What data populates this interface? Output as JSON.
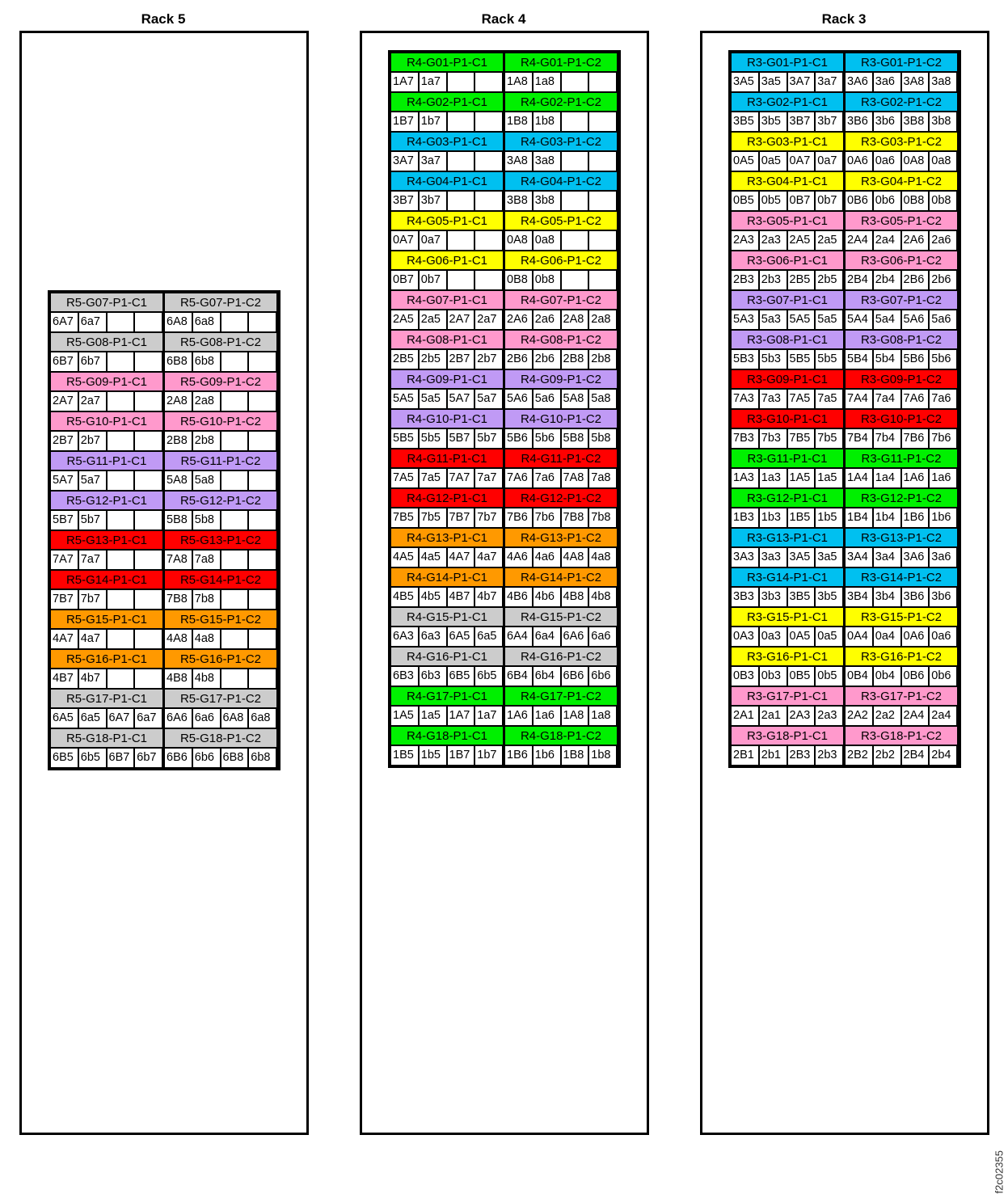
{
  "colors": {
    "gray": "#cccccc",
    "pink": "#ff99cc",
    "purple": "#c09af5",
    "red": "#ff0000",
    "orange": "#ff9900",
    "green": "#00f000",
    "cyan": "#00c0f0",
    "yellow": "#ffff00"
  },
  "figure_id": "f2c02355",
  "racks": [
    {
      "title": "Rack 5",
      "groups": [
        {
          "c1": "R5-G07-P1-C1",
          "c2": "R5-G07-P1-C2",
          "color": "gray",
          "cells": [
            "6A7",
            "6a7",
            "",
            "",
            "6A8",
            "6a8",
            "",
            ""
          ]
        },
        {
          "c1": "R5-G08-P1-C1",
          "c2": "R5-G08-P1-C2",
          "color": "gray",
          "cells": [
            "6B7",
            "6b7",
            "",
            "",
            "6B8",
            "6b8",
            "",
            ""
          ]
        },
        {
          "c1": "R5-G09-P1-C1",
          "c2": "R5-G09-P1-C2",
          "color": "pink",
          "cells": [
            "2A7",
            "2a7",
            "",
            "",
            "2A8",
            "2a8",
            "",
            ""
          ]
        },
        {
          "c1": "R5-G10-P1-C1",
          "c2": "R5-G10-P1-C2",
          "color": "pink",
          "cells": [
            "2B7",
            "2b7",
            "",
            "",
            "2B8",
            "2b8",
            "",
            ""
          ]
        },
        {
          "c1": "R5-G11-P1-C1",
          "c2": "R5-G11-P1-C2",
          "color": "purple",
          "cells": [
            "5A7",
            "5a7",
            "",
            "",
            "5A8",
            "5a8",
            "",
            ""
          ]
        },
        {
          "c1": "R5-G12-P1-C1",
          "c2": "R5-G12-P1-C2",
          "color": "purple",
          "cells": [
            "5B7",
            "5b7",
            "",
            "",
            "5B8",
            "5b8",
            "",
            ""
          ]
        },
        {
          "c1": "R5-G13-P1-C1",
          "c2": "R5-G13-P1-C2",
          "color": "red",
          "cells": [
            "7A7",
            "7a7",
            "",
            "",
            "7A8",
            "7a8",
            "",
            ""
          ]
        },
        {
          "c1": "R5-G14-P1-C1",
          "c2": "R5-G14-P1-C2",
          "color": "red",
          "cells": [
            "7B7",
            "7b7",
            "",
            "",
            "7B8",
            "7b8",
            "",
            ""
          ]
        },
        {
          "c1": "R5-G15-P1-C1",
          "c2": "R5-G15-P1-C2",
          "color": "orange",
          "cells": [
            "4A7",
            "4a7",
            "",
            "",
            "4A8",
            "4a8",
            "",
            ""
          ]
        },
        {
          "c1": "R5-G16-P1-C1",
          "c2": "R5-G16-P1-C2",
          "color": "orange",
          "cells": [
            "4B7",
            "4b7",
            "",
            "",
            "4B8",
            "4b8",
            "",
            ""
          ]
        },
        {
          "c1": "R5-G17-P1-C1",
          "c2": "R5-G17-P1-C2",
          "color": "gray",
          "cells": [
            "6A5",
            "6a5",
            "6A7",
            "6a7",
            "6A6",
            "6a6",
            "6A8",
            "6a8"
          ]
        },
        {
          "c1": "R5-G18-P1-C1",
          "c2": "R5-G18-P1-C2",
          "color": "gray",
          "cells": [
            "6B5",
            "6b5",
            "6B7",
            "6b7",
            "6B6",
            "6b6",
            "6B8",
            "6b8"
          ]
        }
      ]
    },
    {
      "title": "Rack 4",
      "groups": [
        {
          "c1": "R4-G01-P1-C1",
          "c2": "R4-G01-P1-C2",
          "color": "green",
          "cells": [
            "1A7",
            "1a7",
            "",
            "",
            "1A8",
            "1a8",
            "",
            ""
          ]
        },
        {
          "c1": "R4-G02-P1-C1",
          "c2": "R4-G02-P1-C2",
          "color": "green",
          "cells": [
            "1B7",
            "1b7",
            "",
            "",
            "1B8",
            "1b8",
            "",
            ""
          ]
        },
        {
          "c1": "R4-G03-P1-C1",
          "c2": "R4-G03-P1-C2",
          "color": "cyan",
          "cells": [
            "3A7",
            "3a7",
            "",
            "",
            "3A8",
            "3a8",
            "",
            ""
          ]
        },
        {
          "c1": "R4-G04-P1-C1",
          "c2": "R4-G04-P1-C2",
          "color": "cyan",
          "cells": [
            "3B7",
            "3b7",
            "",
            "",
            "3B8",
            "3b8",
            "",
            ""
          ]
        },
        {
          "c1": "R4-G05-P1-C1",
          "c2": "R4-G05-P1-C2",
          "color": "yellow",
          "cells": [
            "0A7",
            "0a7",
            "",
            "",
            "0A8",
            "0a8",
            "",
            ""
          ]
        },
        {
          "c1": "R4-G06-P1-C1",
          "c2": "R4-G06-P1-C2",
          "color": "yellow",
          "cells": [
            "0B7",
            "0b7",
            "",
            "",
            "0B8",
            "0b8",
            "",
            ""
          ]
        },
        {
          "c1": "R4-G07-P1-C1",
          "c2": "R4-G07-P1-C2",
          "color": "pink",
          "cells": [
            "2A5",
            "2a5",
            "2A7",
            "2a7",
            "2A6",
            "2a6",
            "2A8",
            "2a8"
          ]
        },
        {
          "c1": "R4-G08-P1-C1",
          "c2": "R4-G08-P1-C2",
          "color": "pink",
          "cells": [
            "2B5",
            "2b5",
            "2B7",
            "2b7",
            "2B6",
            "2b6",
            "2B8",
            "2b8"
          ]
        },
        {
          "c1": "R4-G09-P1-C1",
          "c2": "R4-G09-P1-C2",
          "color": "purple",
          "cells": [
            "5A5",
            "5a5",
            "5A7",
            "5a7",
            "5A6",
            "5a6",
            "5A8",
            "5a8"
          ]
        },
        {
          "c1": "R4-G10-P1-C1",
          "c2": "R4-G10-P1-C2",
          "color": "purple",
          "cells": [
            "5B5",
            "5b5",
            "5B7",
            "5b7",
            "5B6",
            "5b6",
            "5B8",
            "5b8"
          ]
        },
        {
          "c1": "R4-G11-P1-C1",
          "c2": "R4-G11-P1-C2",
          "color": "red",
          "cells": [
            "7A5",
            "7a5",
            "7A7",
            "7a7",
            "7A6",
            "7a6",
            "7A8",
            "7a8"
          ]
        },
        {
          "c1": "R4-G12-P1-C1",
          "c2": "R4-G12-P1-C2",
          "color": "red",
          "cells": [
            "7B5",
            "7b5",
            "7B7",
            "7b7",
            "7B6",
            "7b6",
            "7B8",
            "7b8"
          ]
        },
        {
          "c1": "R4-G13-P1-C1",
          "c2": "R4-G13-P1-C2",
          "color": "orange",
          "cells": [
            "4A5",
            "4a5",
            "4A7",
            "4a7",
            "4A6",
            "4a6",
            "4A8",
            "4a8"
          ]
        },
        {
          "c1": "R4-G14-P1-C1",
          "c2": "R4-G14-P1-C2",
          "color": "orange",
          "cells": [
            "4B5",
            "4b5",
            "4B7",
            "4b7",
            "4B6",
            "4b6",
            "4B8",
            "4b8"
          ]
        },
        {
          "c1": "R4-G15-P1-C1",
          "c2": "R4-G15-P1-C2",
          "color": "gray",
          "cells": [
            "6A3",
            "6a3",
            "6A5",
            "6a5",
            "6A4",
            "6a4",
            "6A6",
            "6a6"
          ]
        },
        {
          "c1": "R4-G16-P1-C1",
          "c2": "R4-G16-P1-C2",
          "color": "gray",
          "cells": [
            "6B3",
            "6b3",
            "6B5",
            "6b5",
            "6B4",
            "6b4",
            "6B6",
            "6b6"
          ]
        },
        {
          "c1": "R4-G17-P1-C1",
          "c2": "R4-G17-P1-C2",
          "color": "green",
          "cells": [
            "1A5",
            "1a5",
            "1A7",
            "1a7",
            "1A6",
            "1a6",
            "1A8",
            "1a8"
          ]
        },
        {
          "c1": "R4-G18-P1-C1",
          "c2": "R4-G18-P1-C2",
          "color": "green",
          "cells": [
            "1B5",
            "1b5",
            "1B7",
            "1b7",
            "1B6",
            "1b6",
            "1B8",
            "1b8"
          ]
        }
      ]
    },
    {
      "title": "Rack 3",
      "groups": [
        {
          "c1": "R3-G01-P1-C1",
          "c2": "R3-G01-P1-C2",
          "color": "cyan",
          "cells": [
            "3A5",
            "3a5",
            "3A7",
            "3a7",
            "3A6",
            "3a6",
            "3A8",
            "3a8"
          ]
        },
        {
          "c1": "R3-G02-P1-C1",
          "c2": "R3-G02-P1-C2",
          "color": "cyan",
          "cells": [
            "3B5",
            "3b5",
            "3B7",
            "3b7",
            "3B6",
            "3b6",
            "3B8",
            "3b8"
          ]
        },
        {
          "c1": "R3-G03-P1-C1",
          "c2": "R3-G03-P1-C2",
          "color": "yellow",
          "cells": [
            "0A5",
            "0a5",
            "0A7",
            "0a7",
            "0A6",
            "0a6",
            "0A8",
            "0a8"
          ]
        },
        {
          "c1": "R3-G04-P1-C1",
          "c2": "R3-G04-P1-C2",
          "color": "yellow",
          "cells": [
            "0B5",
            "0b5",
            "0B7",
            "0b7",
            "0B6",
            "0b6",
            "0B8",
            "0b8"
          ]
        },
        {
          "c1": "R3-G05-P1-C1",
          "c2": "R3-G05-P1-C2",
          "color": "pink",
          "cells": [
            "2A3",
            "2a3",
            "2A5",
            "2a5",
            "2A4",
            "2a4",
            "2A6",
            "2a6"
          ]
        },
        {
          "c1": "R3-G06-P1-C1",
          "c2": "R3-G06-P1-C2",
          "color": "pink",
          "cells": [
            "2B3",
            "2b3",
            "2B5",
            "2b5",
            "2B4",
            "2b4",
            "2B6",
            "2b6"
          ]
        },
        {
          "c1": "R3-G07-P1-C1",
          "c2": "R3-G07-P1-C2",
          "color": "purple",
          "cells": [
            "5A3",
            "5a3",
            "5A5",
            "5a5",
            "5A4",
            "5a4",
            "5A6",
            "5a6"
          ]
        },
        {
          "c1": "R3-G08-P1-C1",
          "c2": "R3-G08-P1-C2",
          "color": "purple",
          "cells": [
            "5B3",
            "5b3",
            "5B5",
            "5b5",
            "5B4",
            "5b4",
            "5B6",
            "5b6"
          ]
        },
        {
          "c1": "R3-G09-P1-C1",
          "c2": "R3-G09-P1-C2",
          "color": "red",
          "cells": [
            "7A3",
            "7a3",
            "7A5",
            "7a5",
            "7A4",
            "7a4",
            "7A6",
            "7a6"
          ]
        },
        {
          "c1": "R3-G10-P1-C1",
          "c2": "R3-G10-P1-C2",
          "color": "red",
          "cells": [
            "7B3",
            "7b3",
            "7B5",
            "7b5",
            "7B4",
            "7b4",
            "7B6",
            "7b6"
          ]
        },
        {
          "c1": "R3-G11-P1-C1",
          "c2": "R3-G11-P1-C2",
          "color": "green",
          "cells": [
            "1A3",
            "1a3",
            "1A5",
            "1a5",
            "1A4",
            "1a4",
            "1A6",
            "1a6"
          ]
        },
        {
          "c1": "R3-G12-P1-C1",
          "c2": "R3-G12-P1-C2",
          "color": "green",
          "cells": [
            "1B3",
            "1b3",
            "1B5",
            "1b5",
            "1B4",
            "1b4",
            "1B6",
            "1b6"
          ]
        },
        {
          "c1": "R3-G13-P1-C1",
          "c2": "R3-G13-P1-C2",
          "color": "cyan",
          "cells": [
            "3A3",
            "3a3",
            "3A5",
            "3a5",
            "3A4",
            "3a4",
            "3A6",
            "3a6"
          ]
        },
        {
          "c1": "R3-G14-P1-C1",
          "c2": "R3-G14-P1-C2",
          "color": "cyan",
          "cells": [
            "3B3",
            "3b3",
            "3B5",
            "3b5",
            "3B4",
            "3b4",
            "3B6",
            "3b6"
          ]
        },
        {
          "c1": "R3-G15-P1-C1",
          "c2": "R3-G15-P1-C2",
          "color": "yellow",
          "cells": [
            "0A3",
            "0a3",
            "0A5",
            "0a5",
            "0A4",
            "0a4",
            "0A6",
            "0a6"
          ]
        },
        {
          "c1": "R3-G16-P1-C1",
          "c2": "R3-G16-P1-C2",
          "color": "yellow",
          "cells": [
            "0B3",
            "0b3",
            "0B5",
            "0b5",
            "0B4",
            "0b4",
            "0B6",
            "0b6"
          ]
        },
        {
          "c1": "R3-G17-P1-C1",
          "c2": "R3-G17-P1-C2",
          "color": "pink",
          "cells": [
            "2A1",
            "2a1",
            "2A3",
            "2a3",
            "2A2",
            "2a2",
            "2A4",
            "2a4"
          ]
        },
        {
          "c1": "R3-G18-P1-C1",
          "c2": "R3-G18-P1-C2",
          "color": "pink",
          "cells": [
            "2B1",
            "2b1",
            "2B3",
            "2b3",
            "2B2",
            "2b2",
            "2B4",
            "2b4"
          ]
        }
      ]
    }
  ]
}
